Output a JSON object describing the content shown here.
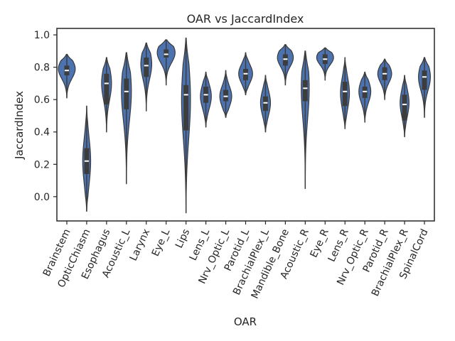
{
  "chart_data": {
    "type": "violin",
    "title": "OAR vs JaccardIndex",
    "xlabel": "OAR",
    "ylabel": "JaccardIndex",
    "ylim": [
      -0.15,
      1.04
    ],
    "yticks": [
      "0.0",
      "0.2",
      "0.4",
      "0.6",
      "0.8",
      "1.0"
    ],
    "series": [
      {
        "name": "Brainstem",
        "min": 0.61,
        "max": 0.88,
        "q1": 0.75,
        "median": 0.78,
        "q3": 0.81,
        "mode": 0.79,
        "width": 0.85
      },
      {
        "name": "OpticChiasm",
        "min": -0.09,
        "max": 0.56,
        "q1": 0.14,
        "median": 0.22,
        "q3": 0.3,
        "mode": 0.22,
        "width": 0.4
      },
      {
        "name": "Esophagus",
        "min": 0.4,
        "max": 0.86,
        "q1": 0.57,
        "median": 0.7,
        "q3": 0.76,
        "mode": 0.7,
        "width": 0.5
      },
      {
        "name": "Acoustic_L",
        "min": 0.08,
        "max": 0.89,
        "q1": 0.54,
        "median": 0.65,
        "q3": 0.73,
        "mode": 0.65,
        "width": 0.5
      },
      {
        "name": "Larynx",
        "min": 0.53,
        "max": 0.95,
        "q1": 0.74,
        "median": 0.81,
        "q3": 0.86,
        "mode": 0.82,
        "width": 0.55
      },
      {
        "name": "Eye_L",
        "min": 0.69,
        "max": 0.97,
        "q1": 0.86,
        "median": 0.88,
        "q3": 0.91,
        "mode": 0.89,
        "width": 0.9
      },
      {
        "name": "Lips",
        "min": -0.1,
        "max": 0.98,
        "q1": 0.41,
        "median": 0.63,
        "q3": 0.69,
        "mode": 0.6,
        "width": 0.45
      },
      {
        "name": "Lens_L",
        "min": 0.43,
        "max": 0.77,
        "q1": 0.58,
        "median": 0.63,
        "q3": 0.68,
        "mode": 0.62,
        "width": 0.55
      },
      {
        "name": "Nrv_Optic_L",
        "min": 0.49,
        "max": 0.78,
        "q1": 0.59,
        "median": 0.62,
        "q3": 0.66,
        "mode": 0.62,
        "width": 0.6
      },
      {
        "name": "Parotid_L",
        "min": 0.63,
        "max": 0.89,
        "q1": 0.72,
        "median": 0.76,
        "q3": 0.79,
        "mode": 0.76,
        "width": 0.7
      },
      {
        "name": "BrachialPlex_L",
        "min": 0.4,
        "max": 0.75,
        "q1": 0.53,
        "median": 0.58,
        "q3": 0.62,
        "mode": 0.58,
        "width": 0.5
      },
      {
        "name": "Mandible_Bone",
        "min": 0.69,
        "max": 0.94,
        "q1": 0.81,
        "median": 0.85,
        "q3": 0.88,
        "mode": 0.86,
        "width": 0.8
      },
      {
        "name": "Acoustic_R",
        "min": 0.05,
        "max": 0.9,
        "q1": 0.59,
        "median": 0.67,
        "q3": 0.72,
        "mode": 0.67,
        "width": 0.4
      },
      {
        "name": "Eye_R",
        "min": 0.72,
        "max": 0.92,
        "q1": 0.82,
        "median": 0.85,
        "q3": 0.88,
        "mode": 0.86,
        "width": 0.85
      },
      {
        "name": "Lens_R",
        "min": 0.42,
        "max": 0.86,
        "q1": 0.56,
        "median": 0.65,
        "q3": 0.71,
        "mode": 0.64,
        "width": 0.45
      },
      {
        "name": "Nrv_Optic_R",
        "min": 0.46,
        "max": 0.77,
        "q1": 0.61,
        "median": 0.65,
        "q3": 0.68,
        "mode": 0.65,
        "width": 0.6
      },
      {
        "name": "Parotid_R",
        "min": 0.6,
        "max": 0.85,
        "q1": 0.72,
        "median": 0.76,
        "q3": 0.8,
        "mode": 0.76,
        "width": 0.7
      },
      {
        "name": "BrachialPlex_R",
        "min": 0.37,
        "max": 0.75,
        "q1": 0.47,
        "median": 0.57,
        "q3": 0.63,
        "mode": 0.58,
        "width": 0.45
      },
      {
        "name": "SpinalCord",
        "min": 0.49,
        "max": 0.86,
        "q1": 0.66,
        "median": 0.74,
        "q3": 0.78,
        "mode": 0.74,
        "width": 0.6
      }
    ],
    "colors": {
      "violin": "#4c72b0",
      "box": "#3d3d3d",
      "median": "#ffffff"
    },
    "grid": false,
    "legend": "none"
  }
}
